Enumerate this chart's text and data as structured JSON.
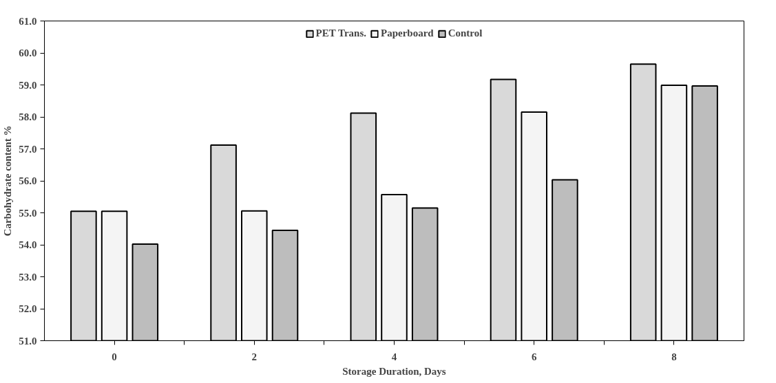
{
  "chart_data": {
    "type": "bar",
    "xlabel": "Storage Duration, Days",
    "ylabel": "Carbohydrate content %",
    "categories": [
      "0",
      "2",
      "4",
      "6",
      "8"
    ],
    "series": [
      {
        "name": "PET Trans.",
        "color": "#d9d9d9",
        "values": [
          55.05,
          57.12,
          58.12,
          59.17,
          59.65
        ]
      },
      {
        "name": "Paperboard",
        "color": "#f4f4f4",
        "values": [
          55.05,
          55.06,
          55.57,
          58.15,
          58.99
        ]
      },
      {
        "name": "Control",
        "color": "#bdbdbd",
        "values": [
          54.02,
          54.45,
          55.15,
          56.03,
          58.97
        ]
      }
    ],
    "ylim": [
      51,
      61
    ],
    "yticks": [
      {
        "value": 51,
        "label": "51.0"
      },
      {
        "value": 52,
        "label": "52.0"
      },
      {
        "value": 53,
        "label": "53.0"
      },
      {
        "value": 54,
        "label": "54.0"
      },
      {
        "value": 55,
        "label": "55.0"
      },
      {
        "value": 56,
        "label": "56.0"
      },
      {
        "value": 57,
        "label": "57.0"
      },
      {
        "value": 58,
        "label": "58.0"
      },
      {
        "value": 59,
        "label": "59.0"
      },
      {
        "value": 60,
        "label": "60.0"
      },
      {
        "value": 61,
        "label": "61.0"
      }
    ],
    "grid": false,
    "legend": "top"
  }
}
